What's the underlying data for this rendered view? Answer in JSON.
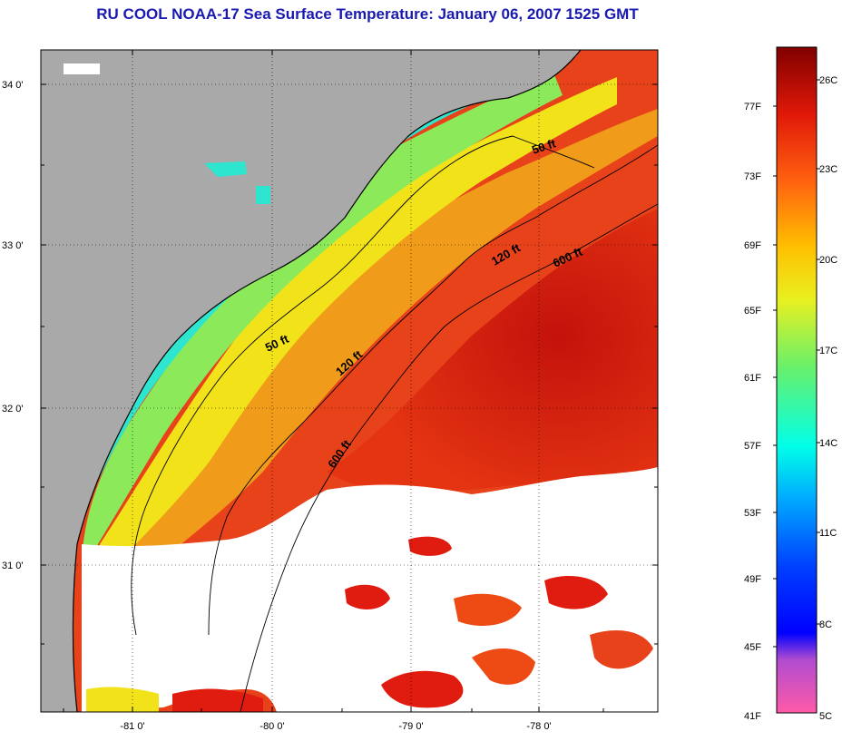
{
  "title": "RU COOL  NOAA-17  Sea Surface Temperature:  January 06, 2007 1525 GMT",
  "map": {
    "lon_ticks": [
      "-81 0'",
      "-80 0'",
      "-79 0'",
      "-78 0'"
    ],
    "lat_ticks": [
      "34 0'",
      "33 0'",
      "32 0'",
      "31 0'"
    ],
    "contours": [
      {
        "label": "50 ft",
        "depth_ft": 50
      },
      {
        "label": "50 ft",
        "depth_ft": 50
      },
      {
        "label": "120 ft",
        "depth_ft": 120
      },
      {
        "label": "120 ft",
        "depth_ft": 120
      },
      {
        "label": "600 ft",
        "depth_ft": 600
      },
      {
        "label": "600 ft",
        "depth_ft": 600
      }
    ],
    "colors": {
      "land": "#a9a9a9",
      "cloud": "#ffffff",
      "cold_nearshore": "#2ee6d0",
      "mid": "#f2e21a",
      "warm": "#ee4a14",
      "gulf_stream": "#c8160e"
    }
  },
  "colorbar": {
    "fahrenheit": [
      "77F",
      "73F",
      "69F",
      "65F",
      "61F",
      "57F",
      "53F",
      "49F",
      "45F",
      "41F"
    ],
    "celsius": [
      "26C",
      "23C",
      "20C",
      "17C",
      "14C",
      "11C",
      "8C",
      "5C"
    ]
  }
}
